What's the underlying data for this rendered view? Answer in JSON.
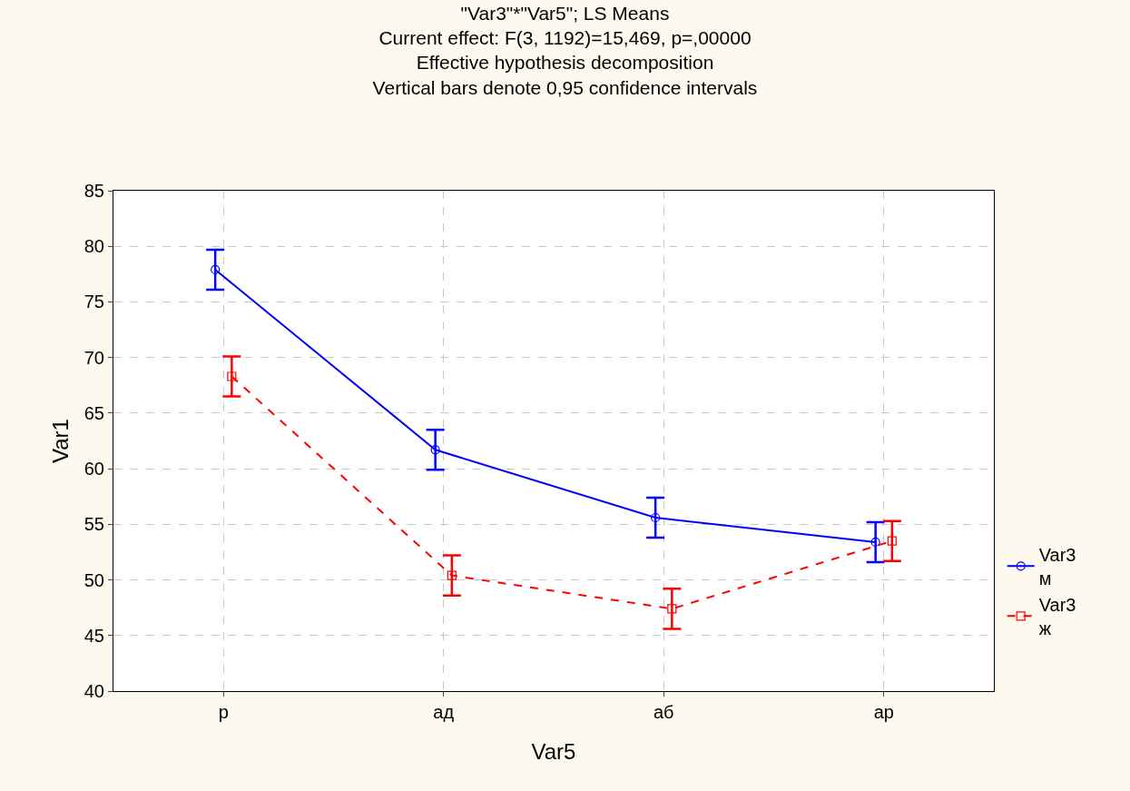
{
  "chart_data": {
    "type": "line",
    "title": "\"Var3\"*\"Var5\"; LS Means",
    "subtitle": "Current effect: F(3, 1192)=15,469, p=,00000\nEffective hypothesis decomposition\nVertical bars denote 0,95 confidence intervals",
    "xlabel": "Var5",
    "ylabel": "Var1",
    "categories": [
      "р",
      "ад",
      "аб",
      "ар"
    ],
    "series": [
      {
        "name": "Var3\nм",
        "color": "#0000ff",
        "values": [
          77.9,
          61.7,
          55.6,
          53.4
        ],
        "errors": [
          1.8,
          1.8,
          1.8,
          1.8
        ],
        "marker": "circle",
        "line_style": "solid"
      },
      {
        "name": "Var3\nж",
        "color": "#ff0000",
        "values": [
          68.3,
          50.4,
          47.4,
          53.5
        ],
        "errors": [
          1.8,
          1.8,
          1.8,
          1.8
        ],
        "marker": "square",
        "line_style": "dashed"
      }
    ],
    "ylim": [
      40,
      85
    ],
    "yticks": [
      40,
      45,
      50,
      55,
      60,
      65,
      70,
      75,
      80,
      85
    ],
    "grid": true,
    "legend": "right"
  }
}
